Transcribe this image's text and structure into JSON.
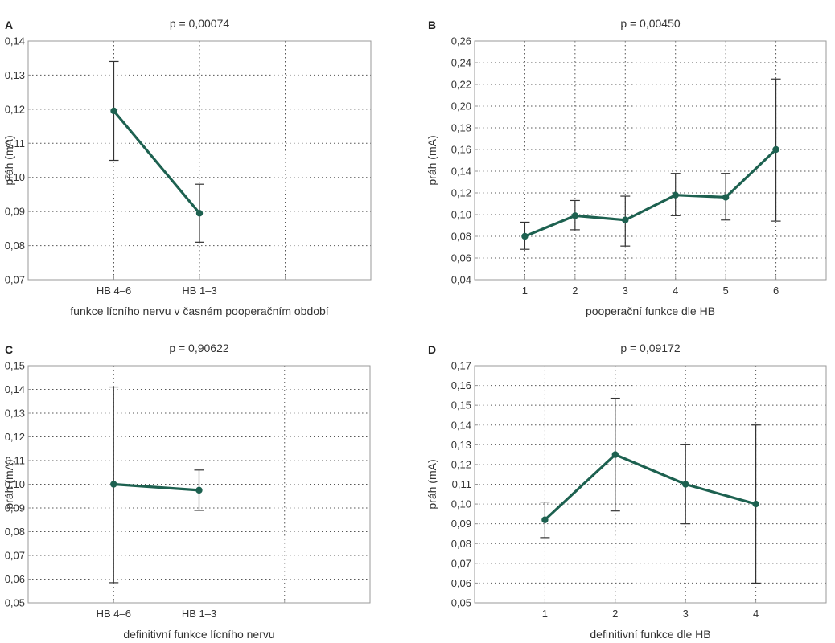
{
  "colors": {
    "series": "#1d6150",
    "error_bar": "#333333",
    "grid": "#555555",
    "frame": "#9a9a9a"
  },
  "chart_data": [
    {
      "panel": "A",
      "type": "line",
      "title": "p = 0,00074",
      "xlabel": "funkce lícního nervu v časném pooperačním období",
      "ylabel": "práh (mA)",
      "categories": [
        "HB 4–6",
        "HB 1–3"
      ],
      "x_slots": 3,
      "values": [
        0.1195,
        0.0895
      ],
      "errors": [
        [
          0.105,
          0.134
        ],
        [
          0.081,
          0.098
        ]
      ],
      "ylim": [
        0.07,
        0.14
      ],
      "yticks": [
        0.07,
        0.08,
        0.09,
        0.1,
        0.11,
        0.12,
        0.13,
        0.14
      ],
      "ytick_decimals": 2,
      "grid": true
    },
    {
      "panel": "B",
      "type": "line",
      "title": "p = 0,00450",
      "xlabel": "pooperační funkce dle HB",
      "ylabel": "práh (mA)",
      "categories": [
        "1",
        "2",
        "3",
        "4",
        "5",
        "6"
      ],
      "x_slots": 6,
      "values": [
        0.08,
        0.099,
        0.095,
        0.118,
        0.116,
        0.16
      ],
      "errors": [
        [
          0.068,
          0.093
        ],
        [
          0.086,
          0.113
        ],
        [
          0.071,
          0.117
        ],
        [
          0.099,
          0.138
        ],
        [
          0.095,
          0.138
        ],
        [
          0.094,
          0.225
        ]
      ],
      "ylim": [
        0.04,
        0.26
      ],
      "yticks": [
        0.04,
        0.06,
        0.08,
        0.1,
        0.12,
        0.14,
        0.16,
        0.18,
        0.2,
        0.22,
        0.24,
        0.26
      ],
      "ytick_decimals": 2,
      "grid": true
    },
    {
      "panel": "C",
      "type": "line",
      "title": "p = 0,90622",
      "xlabel": "definitivní funkce lícního nervu",
      "ylabel": "práh (mA)",
      "categories": [
        "HB 4–6",
        "HB 1–3"
      ],
      "x_slots": 3,
      "values": [
        0.1,
        0.0975
      ],
      "errors": [
        [
          0.0585,
          0.141
        ],
        [
          0.089,
          0.106
        ]
      ],
      "ylim": [
        0.05,
        0.15
      ],
      "yticks": [
        0.05,
        0.06,
        0.07,
        0.08,
        0.09,
        0.1,
        0.11,
        0.12,
        0.13,
        0.14,
        0.15
      ],
      "ytick_decimals": 2,
      "grid": true
    },
    {
      "panel": "D",
      "type": "line",
      "title": "p = 0,09172",
      "xlabel": "definitivní funkce dle HB",
      "ylabel": "práh (mA)",
      "categories": [
        "1",
        "2",
        "3",
        "4"
      ],
      "x_slots": 4,
      "values": [
        0.092,
        0.125,
        0.11,
        0.1
      ],
      "errors": [
        [
          0.083,
          0.101
        ],
        [
          0.0965,
          0.1535
        ],
        [
          0.09,
          0.13
        ],
        [
          0.06,
          0.14
        ]
      ],
      "ylim": [
        0.05,
        0.17
      ],
      "yticks": [
        0.05,
        0.06,
        0.07,
        0.08,
        0.09,
        0.1,
        0.11,
        0.12,
        0.13,
        0.14,
        0.15,
        0.16,
        0.17
      ],
      "ytick_decimals": 2,
      "grid": true
    }
  ]
}
